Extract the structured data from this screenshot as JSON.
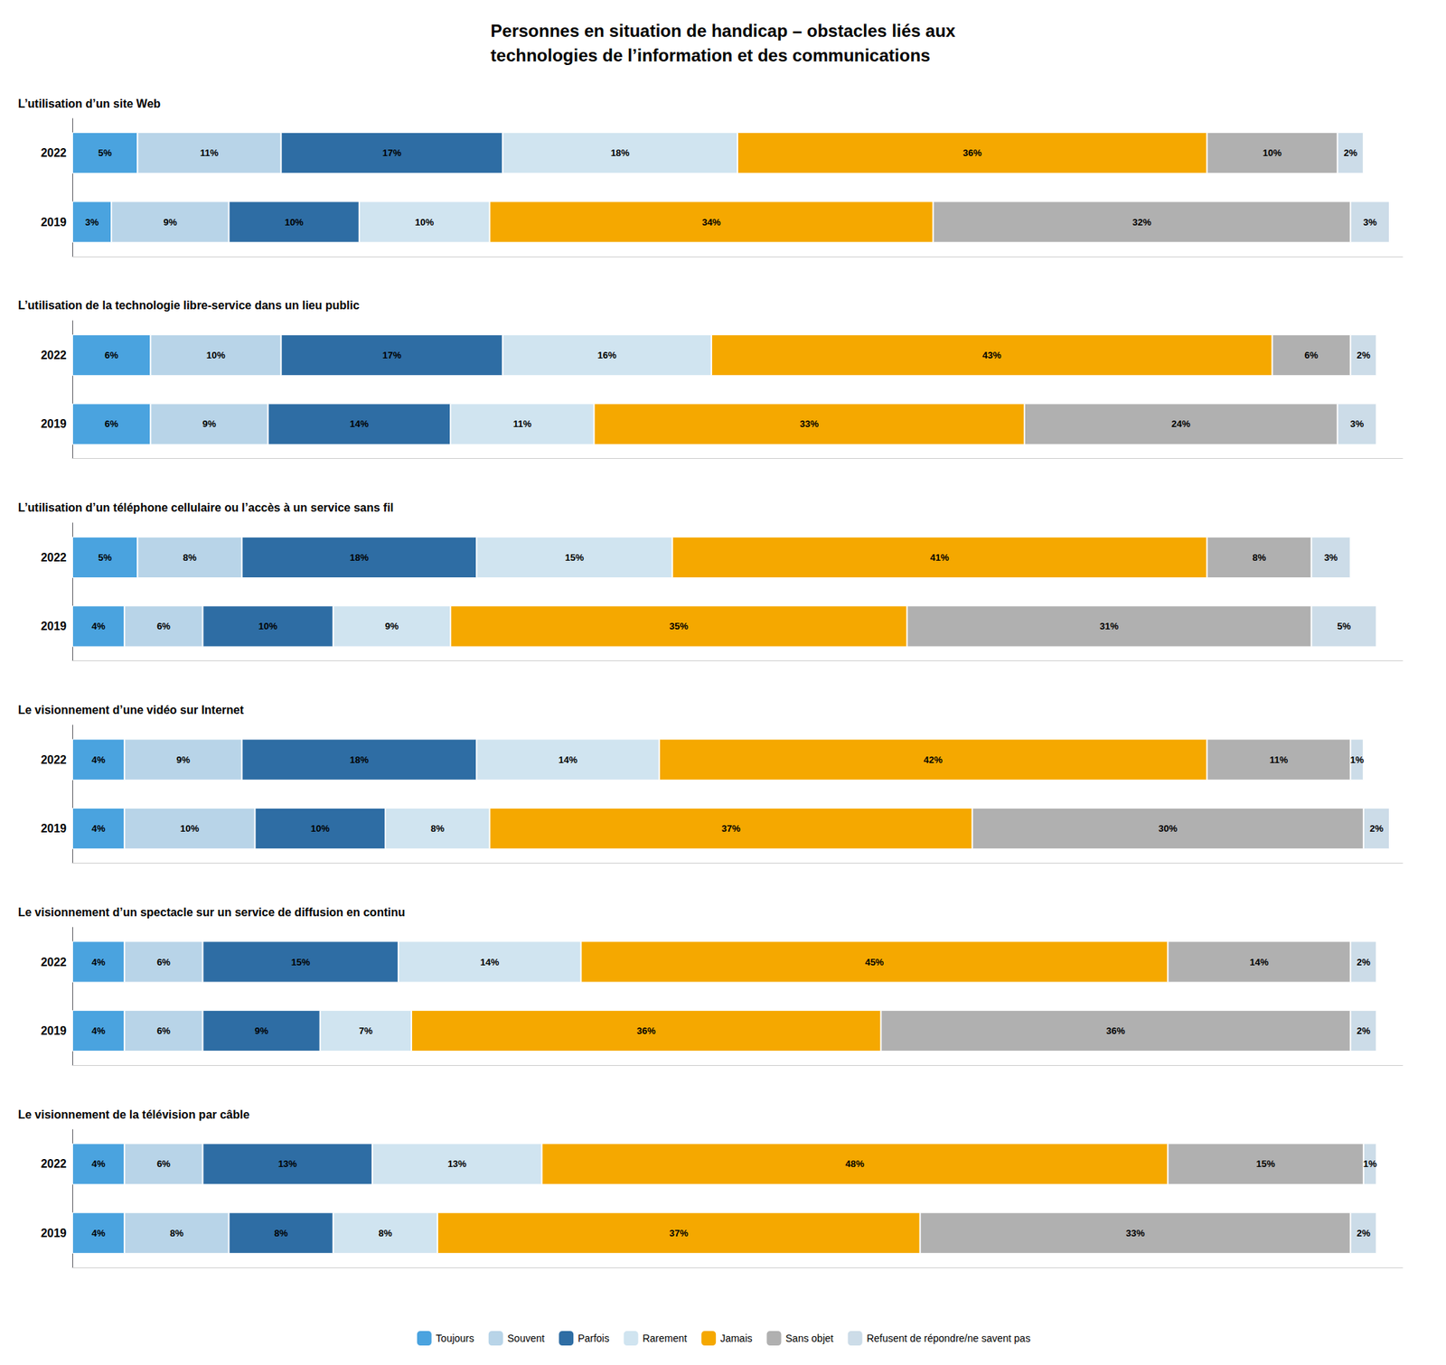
{
  "title": "Personnes en situation de handicap – obstacles liés aux\ntechnologies de l’information et des communications",
  "chart_data": [
    {
      "type": "bar",
      "title": "L’utilisation d’un site Web",
      "orientation": "horizontal",
      "stacked": true,
      "data_labels": true,
      "tick_labels": "y",
      "grid": false,
      "categories": [
        "2022",
        "2019"
      ],
      "xlim": [
        0,
        102
      ],
      "series": [
        {
          "name": "Toujours",
          "color": "#4aa3df",
          "values": [
            5,
            3
          ],
          "value_labels": [
            "5%",
            "3%"
          ]
        },
        {
          "name": "Souvent",
          "color": "#b8d4e8",
          "values": [
            11,
            9
          ],
          "value_labels": [
            "11%",
            "9%"
          ]
        },
        {
          "name": "Parfois",
          "color": "#2e6da4",
          "values": [
            17,
            10
          ],
          "value_labels": [
            "17%",
            "10%"
          ]
        },
        {
          "name": "Rarement",
          "color": "#d0e4f0",
          "values": [
            18,
            10
          ],
          "value_labels": [
            "18%",
            "10%"
          ]
        },
        {
          "name": "Jamais",
          "color": "#f5a800",
          "values": [
            36,
            34
          ],
          "value_labels": [
            "36%",
            "34%"
          ]
        },
        {
          "name": "Sans objet",
          "color": "#b0b0b0",
          "values": [
            10,
            32
          ],
          "value_labels": [
            "10%",
            "32%"
          ]
        },
        {
          "name": "Refusent de répondre/ne savent pas",
          "color": "#ccdce8",
          "values": [
            2,
            3
          ],
          "value_labels": [
            "2%",
            "3%"
          ]
        }
      ]
    },
    {
      "type": "bar",
      "title": "L’utilisation de la technologie libre-service dans un lieu public",
      "orientation": "horizontal",
      "stacked": true,
      "data_labels": true,
      "tick_labels": "y",
      "grid": false,
      "categories": [
        "2022",
        "2019"
      ],
      "xlim": [
        0,
        102
      ],
      "series": [
        {
          "name": "Toujours",
          "color": "#4aa3df",
          "values": [
            6,
            6
          ],
          "value_labels": [
            "6%",
            "6%"
          ]
        },
        {
          "name": "Souvent",
          "color": "#b8d4e8",
          "values": [
            10,
            9
          ],
          "value_labels": [
            "10%",
            "9%"
          ]
        },
        {
          "name": "Parfois",
          "color": "#2e6da4",
          "values": [
            17,
            14
          ],
          "value_labels": [
            "17%",
            "14%"
          ]
        },
        {
          "name": "Rarement",
          "color": "#d0e4f0",
          "values": [
            16,
            11
          ],
          "value_labels": [
            "16%",
            "11%"
          ]
        },
        {
          "name": "Jamais",
          "color": "#f5a800",
          "values": [
            43,
            33
          ],
          "value_labels": [
            "43%",
            "33%"
          ]
        },
        {
          "name": "Sans objet",
          "color": "#b0b0b0",
          "values": [
            6,
            24
          ],
          "value_labels": [
            "6%",
            "24%"
          ]
        },
        {
          "name": "Refusent de répondre/ne savent pas",
          "color": "#ccdce8",
          "values": [
            2,
            3
          ],
          "value_labels": [
            "2%",
            "3%"
          ]
        }
      ]
    },
    {
      "type": "bar",
      "title": "L’utilisation d’un téléphone cellulaire ou l’accès à un service sans fil",
      "orientation": "horizontal",
      "stacked": true,
      "data_labels": true,
      "tick_labels": "y",
      "grid": false,
      "categories": [
        "2022",
        "2019"
      ],
      "xlim": [
        0,
        102
      ],
      "series": [
        {
          "name": "Toujours",
          "color": "#4aa3df",
          "values": [
            5,
            4
          ],
          "value_labels": [
            "5%",
            "4%"
          ]
        },
        {
          "name": "Souvent",
          "color": "#b8d4e8",
          "values": [
            8,
            6
          ],
          "value_labels": [
            "8%",
            "6%"
          ]
        },
        {
          "name": "Parfois",
          "color": "#2e6da4",
          "values": [
            18,
            10
          ],
          "value_labels": [
            "18%",
            "10%"
          ]
        },
        {
          "name": "Rarement",
          "color": "#d0e4f0",
          "values": [
            15,
            9
          ],
          "value_labels": [
            "15%",
            "9%"
          ]
        },
        {
          "name": "Jamais",
          "color": "#f5a800",
          "values": [
            41,
            35
          ],
          "value_labels": [
            "41%",
            "35%"
          ]
        },
        {
          "name": "Sans objet",
          "color": "#b0b0b0",
          "values": [
            8,
            31
          ],
          "value_labels": [
            "8%",
            "31%"
          ]
        },
        {
          "name": "Refusent de répondre/ne savent pas",
          "color": "#ccdce8",
          "values": [
            3,
            5
          ],
          "value_labels": [
            "3%",
            "5%"
          ]
        }
      ]
    },
    {
      "type": "bar",
      "title": "Le visionnement d’une vidéo sur Internet",
      "orientation": "horizontal",
      "stacked": true,
      "data_labels": true,
      "tick_labels": "y",
      "grid": false,
      "categories": [
        "2022",
        "2019"
      ],
      "xlim": [
        0,
        102
      ],
      "series": [
        {
          "name": "Toujours",
          "color": "#4aa3df",
          "values": [
            4,
            4
          ],
          "value_labels": [
            "4%",
            "4%"
          ]
        },
        {
          "name": "Souvent",
          "color": "#b8d4e8",
          "values": [
            9,
            10
          ],
          "value_labels": [
            "9%",
            "10%"
          ]
        },
        {
          "name": "Parfois",
          "color": "#2e6da4",
          "values": [
            18,
            10
          ],
          "value_labels": [
            "18%",
            "10%"
          ]
        },
        {
          "name": "Rarement",
          "color": "#d0e4f0",
          "values": [
            14,
            8
          ],
          "value_labels": [
            "14%",
            "8%"
          ]
        },
        {
          "name": "Jamais",
          "color": "#f5a800",
          "values": [
            42,
            37
          ],
          "value_labels": [
            "42%",
            "37%"
          ]
        },
        {
          "name": "Sans objet",
          "color": "#b0b0b0",
          "values": [
            11,
            30
          ],
          "value_labels": [
            "11%",
            "30%"
          ]
        },
        {
          "name": "Refusent de répondre/ne savent pas",
          "color": "#ccdce8",
          "values": [
            1,
            2
          ],
          "value_labels": [
            "1%",
            "2%"
          ]
        }
      ]
    },
    {
      "type": "bar",
      "title": "Le visionnement d’un spectacle sur un service de diffusion en continu",
      "orientation": "horizontal",
      "stacked": true,
      "data_labels": true,
      "tick_labels": "y",
      "grid": false,
      "categories": [
        "2022",
        "2019"
      ],
      "xlim": [
        0,
        102
      ],
      "series": [
        {
          "name": "Toujours",
          "color": "#4aa3df",
          "values": [
            4,
            4
          ],
          "value_labels": [
            "4%",
            "4%"
          ]
        },
        {
          "name": "Souvent",
          "color": "#b8d4e8",
          "values": [
            6,
            6
          ],
          "value_labels": [
            "6%",
            "6%"
          ]
        },
        {
          "name": "Parfois",
          "color": "#2e6da4",
          "values": [
            15,
            9
          ],
          "value_labels": [
            "15%",
            "9%"
          ]
        },
        {
          "name": "Rarement",
          "color": "#d0e4f0",
          "values": [
            14,
            7
          ],
          "value_labels": [
            "14%",
            "7%"
          ]
        },
        {
          "name": "Jamais",
          "color": "#f5a800",
          "values": [
            45,
            36
          ],
          "value_labels": [
            "45%",
            "36%"
          ]
        },
        {
          "name": "Sans objet",
          "color": "#b0b0b0",
          "values": [
            14,
            36
          ],
          "value_labels": [
            "14%",
            "36%"
          ]
        },
        {
          "name": "Refusent de répondre/ne savent pas",
          "color": "#ccdce8",
          "values": [
            2,
            2
          ],
          "value_labels": [
            "2%",
            "2%"
          ]
        }
      ]
    },
    {
      "type": "bar",
      "title": "Le visionnement de la télévision par câble",
      "orientation": "horizontal",
      "stacked": true,
      "data_labels": true,
      "tick_labels": "y",
      "grid": false,
      "legend": "bottom",
      "categories": [
        "2022",
        "2019"
      ],
      "xlim": [
        0,
        102
      ],
      "series": [
        {
          "name": "Toujours",
          "color": "#4aa3df",
          "values": [
            4,
            4
          ],
          "value_labels": [
            "4%",
            "4%"
          ]
        },
        {
          "name": "Souvent",
          "color": "#b8d4e8",
          "values": [
            6,
            8
          ],
          "value_labels": [
            "6%",
            "8%"
          ]
        },
        {
          "name": "Parfois",
          "color": "#2e6da4",
          "values": [
            13,
            8
          ],
          "value_labels": [
            "13%",
            "8%"
          ]
        },
        {
          "name": "Rarement",
          "color": "#d0e4f0",
          "values": [
            13,
            8
          ],
          "value_labels": [
            "13%",
            "8%"
          ]
        },
        {
          "name": "Jamais",
          "color": "#f5a800",
          "values": [
            48,
            37
          ],
          "value_labels": [
            "48%",
            "37%"
          ]
        },
        {
          "name": "Sans objet",
          "color": "#b0b0b0",
          "values": [
            15,
            33
          ],
          "value_labels": [
            "15%",
            "33%"
          ]
        },
        {
          "name": "Refusent de répondre/ne savent pas",
          "color": "#ccdce8",
          "values": [
            1,
            2
          ],
          "value_labels": [
            "1%",
            "2%"
          ]
        }
      ]
    }
  ]
}
